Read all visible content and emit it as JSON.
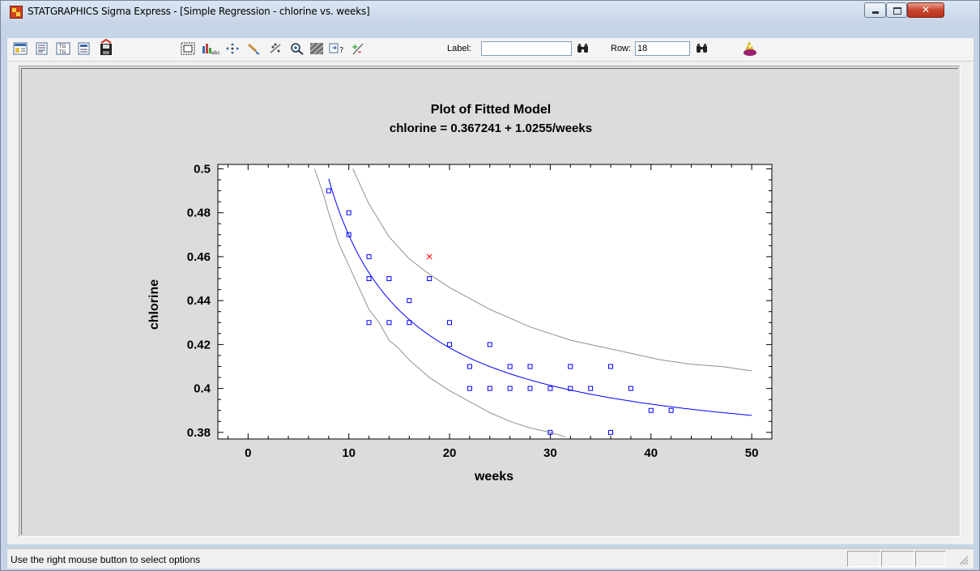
{
  "window": {
    "title": "STATGRAPHICS Sigma Express - [Simple Regression - chlorine vs. weeks]"
  },
  "toolbar": {
    "label_text": "Label:",
    "label_value": "",
    "row_text": "Row:",
    "row_value": "18",
    "icons": [
      "analysis-options-icon",
      "tables-icon",
      "graphs-icon",
      "pane-options-icon",
      "save-results-icon",
      "graph-options-icon",
      "label-points-icon",
      "move-icon",
      "brush-icon",
      "exclude-points-icon",
      "zoom-icon",
      "shading-icon",
      "help-icon",
      "exclude-toggle-icon",
      "find-label-icon",
      "find-row-icon",
      "statgallery-icon"
    ]
  },
  "status": {
    "message": "Use the right mouse button to select options"
  },
  "chart_data": {
    "type": "scatter",
    "title": "Plot of Fitted Model",
    "subtitle": "chlorine = 0.367241 + 1.0255/weeks",
    "xlabel": "weeks",
    "ylabel": "chlorine",
    "xlim": [
      -3,
      52
    ],
    "ylim": [
      0.377,
      0.502
    ],
    "xticks": [
      0,
      10,
      20,
      30,
      40,
      50
    ],
    "yticks": [
      0.38,
      0.4,
      0.42,
      0.44,
      0.46,
      0.48,
      0.5
    ],
    "ytick_labels": [
      "0.38",
      "0.4",
      "0.42",
      "0.44",
      "0.46",
      "0.48",
      "0.5"
    ],
    "xtick_labels": [
      "0",
      "10",
      "20",
      "30",
      "40",
      "50"
    ],
    "fit": {
      "intercept": 0.367241,
      "slope": 1.0255,
      "form": "a + b/x",
      "x_range": [
        8,
        50
      ]
    },
    "upper_band": [
      [
        10.4,
        0.5
      ],
      [
        12,
        0.484
      ],
      [
        14,
        0.469
      ],
      [
        16,
        0.459
      ],
      [
        18,
        0.452
      ],
      [
        20,
        0.446
      ],
      [
        22,
        0.441
      ],
      [
        24,
        0.436
      ],
      [
        26,
        0.432
      ],
      [
        28,
        0.428
      ],
      [
        30,
        0.425
      ],
      [
        32,
        0.422
      ],
      [
        35,
        0.419
      ],
      [
        38,
        0.416
      ],
      [
        41,
        0.413
      ],
      [
        44,
        0.411
      ],
      [
        47,
        0.41
      ],
      [
        50,
        0.408
      ]
    ],
    "lower_band": [
      [
        6.6,
        0.5
      ],
      [
        7.5,
        0.488
      ],
      [
        8,
        0.48
      ],
      [
        9,
        0.466
      ],
      [
        10,
        0.456
      ],
      [
        11,
        0.446
      ],
      [
        12,
        0.436
      ],
      [
        13,
        0.43
      ],
      [
        14,
        0.422
      ],
      [
        15,
        0.418
      ],
      [
        16,
        0.413
      ],
      [
        18,
        0.405
      ],
      [
        20,
        0.399
      ],
      [
        22,
        0.394
      ],
      [
        24,
        0.389
      ],
      [
        26,
        0.385
      ],
      [
        28,
        0.382
      ],
      [
        30,
        0.38
      ],
      [
        31.5,
        0.378
      ]
    ],
    "points": [
      [
        8,
        0.49
      ],
      [
        10,
        0.48
      ],
      [
        10,
        0.47
      ],
      [
        12,
        0.46
      ],
      [
        12,
        0.45
      ],
      [
        12,
        0.43
      ],
      [
        14,
        0.45
      ],
      [
        14,
        0.43
      ],
      [
        16,
        0.44
      ],
      [
        16,
        0.43
      ],
      [
        18,
        0.45
      ],
      [
        20,
        0.43
      ],
      [
        20,
        0.42
      ],
      [
        22,
        0.41
      ],
      [
        22,
        0.4
      ],
      [
        24,
        0.42
      ],
      [
        24,
        0.4
      ],
      [
        26,
        0.41
      ],
      [
        26,
        0.4
      ],
      [
        28,
        0.41
      ],
      [
        28,
        0.4
      ],
      [
        30,
        0.4
      ],
      [
        30,
        0.38
      ],
      [
        32,
        0.41
      ],
      [
        32,
        0.4
      ],
      [
        34,
        0.4
      ],
      [
        36,
        0.41
      ],
      [
        36,
        0.38
      ],
      [
        38,
        0.4
      ],
      [
        40,
        0.39
      ],
      [
        42,
        0.39
      ]
    ],
    "excluded_points": [
      [
        18,
        0.46
      ]
    ],
    "colors": {
      "points": "#0000ff",
      "fit_line": "#0000ff",
      "bands": "#909090",
      "excluded": "#ff0000",
      "plot_background": "#ffffff",
      "pane_background": "#dcdcdc"
    },
    "grid": false
  }
}
